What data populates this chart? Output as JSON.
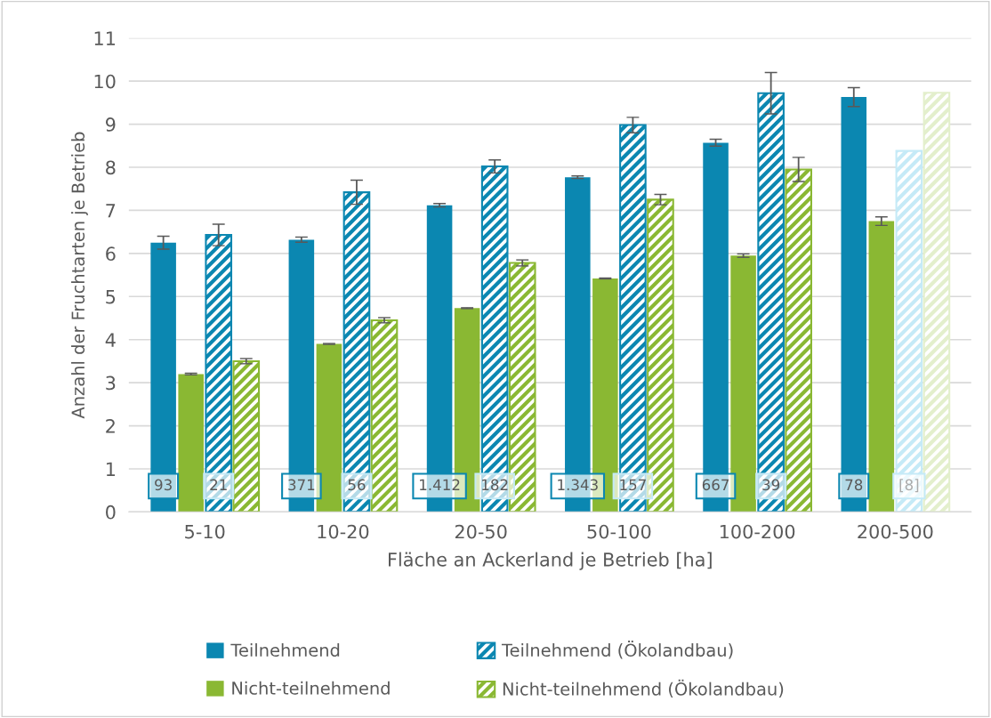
{
  "chart_data": {
    "type": "bar",
    "xlabel": "Fläche an Ackerland je Betrieb [ha]",
    "ylabel": "Anzahl der Fruchtarten je Betrieb",
    "categories": [
      "5-10",
      "10-20",
      "20-50",
      "50-100",
      "100-200",
      "200-500"
    ],
    "ylim": [
      0,
      11
    ],
    "yticks": [
      0,
      1,
      2,
      3,
      4,
      5,
      6,
      7,
      8,
      9,
      10,
      11
    ],
    "grid": "y",
    "legend": "bottom",
    "series": [
      {
        "name": "Teilnehmend",
        "color": "#0b87b1",
        "values": [
          6.25,
          6.32,
          7.12,
          7.77,
          8.57,
          9.63
        ],
        "errors": [
          0.15,
          0.06,
          0.04,
          0.03,
          0.08,
          0.22
        ]
      },
      {
        "name": "Nicht-teilnehmend",
        "color": "#8ab833",
        "values": [
          3.2,
          3.9,
          4.73,
          5.42,
          5.95,
          6.75
        ],
        "errors": [
          0.02,
          0.01,
          0.01,
          0.01,
          0.04,
          0.1
        ]
      },
      {
        "name": "Teilnehmend (Ökolandbau)",
        "color": "#0b87b1",
        "colors": [
          "#0b87b1",
          "#0b87b1",
          "#0b87b1",
          "#0b87b1",
          "#0b87b1",
          "#c5eaf7"
        ],
        "values": [
          6.43,
          7.42,
          8.02,
          8.98,
          9.72,
          8.38
        ],
        "errors": [
          0.25,
          0.28,
          0.15,
          0.18,
          0.48,
          null
        ]
      },
      {
        "name": "Nicht-teilnehmend (Ökolandbau)",
        "color": "#8ab833",
        "colors": [
          "#8ab833",
          "#8ab833",
          "#8ab833",
          "#8ab833",
          "#8ab833",
          "#e3efcc"
        ],
        "values": [
          3.5,
          4.45,
          5.78,
          7.25,
          7.95,
          9.73
        ],
        "errors": [
          0.06,
          0.06,
          0.07,
          0.12,
          0.28,
          null
        ]
      }
    ],
    "annotations": [
      {
        "text": "93",
        "x": "5-10",
        "y": 0.6
      },
      {
        "text": "21",
        "x": "5-10",
        "y": 0.6
      },
      {
        "text": "371",
        "x": "10-20",
        "y": 0.6
      },
      {
        "text": "56",
        "x": "10-20",
        "y": 0.6
      },
      {
        "text": "1.412",
        "x": "20-50",
        "y": 0.6
      },
      {
        "text": "182",
        "x": "20-50",
        "y": 0.6
      },
      {
        "text": "1.343",
        "x": "50-100",
        "y": 0.6
      },
      {
        "text": "157",
        "x": "50-100",
        "y": 0.6
      },
      {
        "text": "667",
        "x": "100-200",
        "y": 0.6
      },
      {
        "text": "39",
        "x": "100-200",
        "y": 0.6
      },
      {
        "text": "78",
        "x": "200-500",
        "y": 0.6
      },
      {
        "text": "[8]",
        "x": "200-500",
        "y": 0.6
      }
    ]
  }
}
